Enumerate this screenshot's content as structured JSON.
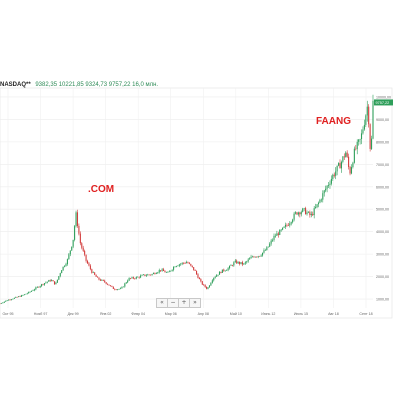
{
  "header": {
    "symbol": "NASDAQ**",
    "values": "9382,35  10221,85  9324,73  9757,22  16,0 млн."
  },
  "annotations": [
    ".COM",
    "FAANG"
  ],
  "nav": {
    "buttons": [
      "«",
      "−",
      "+",
      "»"
    ]
  },
  "chart_data": {
    "type": "line",
    "title": "",
    "xlabel": "",
    "ylabel": "",
    "x_ticks": [
      "Окт 95",
      "Нояб 97",
      "Дек 99",
      "Янв 02",
      "Февр 04",
      "Мар 06",
      "Апр 08",
      "Май 10",
      "Июнь 12",
      "Июль 15",
      "Авг 18",
      "Сент 18"
    ],
    "y_ticks": [
      "1000,00",
      "2000,00",
      "3000,00",
      "4000,00",
      "5000,00",
      "6000,00",
      "7000,00",
      "8000,00",
      "9000,00",
      "10000,00"
    ],
    "price_tag": "9757,22",
    "ylim": [
      600,
      10400
    ],
    "grid": true,
    "series": [
      {
        "x": [
          1995.0,
          1995.5,
          1996.0,
          1996.5,
          1997.0,
          1997.5,
          1998.0,
          1998.5,
          1998.8,
          1999.2,
          1999.6,
          2000.0,
          2000.2,
          2000.5,
          2000.9,
          2001.3,
          2001.7,
          2002.2,
          2002.8,
          2003.3,
          2003.8,
          2004.3,
          2004.8,
          2005.4,
          2006.0,
          2006.5,
          2007.0,
          2007.8,
          2008.3,
          2008.8,
          2009.2,
          2009.6,
          2010.2,
          2010.6,
          2011.1,
          2011.7,
          2012.3,
          2012.8,
          2013.3,
          2013.8,
          2014.3,
          2014.8,
          2015.3,
          2015.8,
          2016.3,
          2016.8,
          2017.3,
          2017.8,
          2018.3,
          2018.7,
          2018.95,
          2019.3,
          2019.7,
          2019.95,
          2020.2,
          2020.4,
          2020.55
        ],
        "y": [
          800,
          950,
          1050,
          1150,
          1300,
          1500,
          1700,
          1850,
          1650,
          2300,
          2700,
          3600,
          4800,
          3500,
          2700,
          2200,
          1900,
          1750,
          1450,
          1450,
          1900,
          1950,
          2050,
          2100,
          2300,
          2150,
          2500,
          2650,
          2300,
          1700,
          1450,
          1950,
          2250,
          2350,
          2650,
          2550,
          2900,
          2950,
          3250,
          3800,
          4050,
          4400,
          4850,
          4950,
          4700,
          5250,
          5900,
          6500,
          7000,
          7550,
          6600,
          7600,
          8100,
          8900,
          9700,
          7200,
          9757
        ]
      }
    ]
  }
}
